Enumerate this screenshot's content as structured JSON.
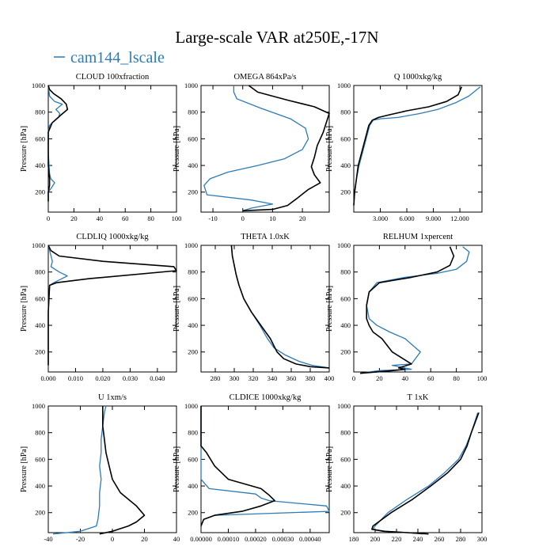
{
  "figure": {
    "title": "Large-scale VAR at250E,-17N",
    "legend_label": "cam144_lscale",
    "colors": {
      "cam": "#2b7bb9",
      "ref": "#000000"
    }
  },
  "chart_data": [
    {
      "type": "line",
      "title": "CLOUD  100xfraction",
      "ylabel": "Pressure [hPa]",
      "xlim": [
        0,
        100
      ],
      "ylim": [
        1000,
        50
      ],
      "xticks": [
        "0",
        "20",
        "40",
        "60",
        "80",
        "100"
      ],
      "xtick_values": [
        0,
        20,
        40,
        60,
        80,
        100
      ],
      "yticks": [
        "200",
        "400",
        "600",
        "800",
        "1000"
      ],
      "ytick_values": [
        200,
        400,
        600,
        800,
        1000
      ],
      "series": [
        {
          "name": "cam144_lscale",
          "color": "#2b7bb9",
          "x": [
            0,
            0,
            3,
            5,
            2,
            1,
            0,
            0,
            1,
            3,
            8,
            9,
            6,
            11,
            5,
            1,
            0
          ],
          "y": [
            130,
            200,
            240,
            270,
            300,
            340,
            500,
            650,
            700,
            720,
            760,
            790,
            820,
            860,
            880,
            920,
            1000
          ]
        },
        {
          "x": [
            0,
            0,
            1,
            1,
            0,
            0,
            3,
            10,
            15,
            14,
            10,
            4,
            1,
            0
          ],
          "y": [
            130,
            200,
            250,
            300,
            400,
            650,
            720,
            780,
            820,
            860,
            900,
            940,
            970,
            1000
          ]
        }
      ]
    },
    {
      "type": "line",
      "title": "OMEGA  864xPa/s",
      "ylabel": "Pressure [hPa]",
      "xlim": [
        -14,
        29
      ],
      "ylim": [
        1000,
        50
      ],
      "xticks": [
        "-10",
        "0",
        "10",
        "20"
      ],
      "xtick_values": [
        -10,
        0,
        10,
        20
      ],
      "yticks": [
        "200",
        "400",
        "600",
        "800",
        "1000"
      ],
      "ytick_values": [
        200,
        400,
        600,
        800,
        1000
      ],
      "series": [
        {
          "name": "cam144_lscale",
          "color": "#2b7bb9",
          "x": [
            0,
            3,
            10,
            3,
            -12,
            -13,
            -11,
            -5,
            5,
            14,
            20,
            22,
            21,
            16,
            6,
            -2,
            -3,
            -3
          ],
          "y": [
            60,
            80,
            110,
            140,
            180,
            250,
            300,
            350,
            400,
            450,
            520,
            600,
            680,
            750,
            830,
            900,
            950,
            1000
          ]
        },
        {
          "x": [
            0,
            10,
            15,
            18,
            22,
            26,
            24,
            23,
            24,
            25,
            27,
            29,
            24,
            15,
            5,
            2
          ],
          "y": [
            60,
            70,
            100,
            150,
            220,
            270,
            330,
            390,
            460,
            550,
            650,
            790,
            840,
            890,
            950,
            1000
          ]
        }
      ]
    },
    {
      "type": "line",
      "title": "Q  1000xkg/kg",
      "ylabel": "Pressure [hPa]",
      "xlim": [
        0,
        14.5
      ],
      "ylim": [
        1000,
        50
      ],
      "xticks": [
        "3.000",
        "6.000",
        "9.000",
        "12.000"
      ],
      "xtick_values": [
        3,
        6,
        9,
        12
      ],
      "yticks": [
        "200",
        "400",
        "600",
        "800",
        "1000"
      ],
      "ytick_values": [
        200,
        400,
        600,
        800,
        1000
      ],
      "series": [
        {
          "name": "cam144_lscale",
          "color": "#2b7bb9",
          "x": [
            0,
            0.1,
            0.3,
            0.6,
            1.0,
            1.4,
            1.8,
            2.2,
            3.0,
            5.0,
            7.5,
            9.5,
            11.5,
            13.0,
            14.3
          ],
          "y": [
            100,
            200,
            300,
            400,
            500,
            600,
            700,
            740,
            750,
            760,
            790,
            820,
            870,
            920,
            990
          ]
        },
        {
          "x": [
            0,
            0.1,
            0.3,
            0.5,
            0.9,
            1.3,
            1.7,
            2.1,
            2.8,
            4.0,
            6.0,
            8.5,
            10.5,
            11.8,
            12.2
          ],
          "y": [
            100,
            200,
            300,
            400,
            500,
            600,
            700,
            740,
            760,
            780,
            810,
            840,
            880,
            930,
            990
          ]
        }
      ]
    },
    {
      "type": "line",
      "title": "CLDLIQ  1000xkg/kg",
      "ylabel": "Pressure [hPa]",
      "xlim": [
        0,
        0.047
      ],
      "ylim": [
        1000,
        50
      ],
      "xticks": [
        "0.000",
        "0.010",
        "0.020",
        "0.030",
        "0.040"
      ],
      "xtick_values": [
        0,
        0.01,
        0.02,
        0.03,
        0.04
      ],
      "yticks": [
        "200",
        "400",
        "600",
        "800",
        "1000"
      ],
      "ytick_values": [
        200,
        400,
        600,
        800,
        1000
      ],
      "series": [
        {
          "name": "cam144_lscale",
          "color": "#2b7bb9",
          "x": [
            0,
            0,
            0.0005,
            0.002,
            0.007,
            0.004,
            0.001,
            0.0015,
            0
          ],
          "y": [
            100,
            500,
            700,
            720,
            770,
            800,
            840,
            880,
            1000
          ]
        },
        {
          "x": [
            0,
            0,
            0.0005,
            0.003,
            0.015,
            0.047,
            0.046,
            0.02,
            0.004,
            0.001,
            0
          ],
          "y": [
            100,
            500,
            700,
            720,
            750,
            810,
            840,
            880,
            920,
            960,
            1000
          ]
        }
      ]
    },
    {
      "type": "line",
      "title": "THETA  1.0xK",
      "ylabel": "Pressure [hPa]",
      "xlim": [
        265,
        400
      ],
      "ylim": [
        1000,
        50
      ],
      "xticks": [
        "280",
        "300",
        "320",
        "340",
        "360",
        "380",
        "400"
      ],
      "xtick_values": [
        280,
        300,
        320,
        340,
        360,
        380,
        400
      ],
      "yticks": [
        "200",
        "400",
        "600",
        "800",
        "1000"
      ],
      "ytick_values": [
        200,
        400,
        600,
        800,
        1000
      ],
      "series": [
        {
          "name": "cam144_lscale",
          "color": "#2b7bb9",
          "x": [
            400,
            382,
            368,
            353,
            342,
            335,
            327,
            318,
            310,
            305,
            302,
            300,
            298,
            297
          ],
          "y": [
            80,
            100,
            130,
            180,
            230,
            300,
            400,
            500,
            600,
            700,
            780,
            850,
            920,
            1000
          ]
        },
        {
          "x": [
            400,
            380,
            365,
            352,
            345,
            338,
            328,
            318,
            310,
            305,
            302,
            300,
            298,
            297
          ],
          "y": [
            80,
            90,
            110,
            150,
            200,
            300,
            400,
            500,
            600,
            700,
            780,
            850,
            920,
            1000
          ]
        }
      ]
    },
    {
      "type": "line",
      "title": "RELHUM  1xpercent",
      "ylabel": "Pressure [hPa]",
      "xlim": [
        0,
        100
      ],
      "ylim": [
        1000,
        50
      ],
      "xticks": [
        "0",
        "20",
        "40",
        "60",
        "80",
        "100"
      ],
      "xtick_values": [
        0,
        20,
        40,
        60,
        80,
        100
      ],
      "yticks": [
        "200",
        "400",
        "600",
        "800",
        "1000"
      ],
      "ytick_values": [
        200,
        400,
        600,
        800,
        1000
      ],
      "series": [
        {
          "name": "cam144_lscale",
          "color": "#2b7bb9",
          "x": [
            5,
            20,
            45,
            30,
            45,
            52,
            40,
            28,
            18,
            12,
            10,
            12,
            18,
            40,
            65,
            80,
            88,
            90,
            85
          ],
          "y": [
            40,
            60,
            70,
            100,
            110,
            200,
            300,
            350,
            400,
            450,
            550,
            650,
            720,
            760,
            790,
            820,
            880,
            950,
            990
          ]
        },
        {
          "x": [
            5,
            30,
            40,
            35,
            45,
            30,
            22,
            15,
            12,
            10,
            10,
            12,
            20,
            45,
            65,
            75,
            78,
            75
          ],
          "y": [
            40,
            60,
            70,
            80,
            110,
            200,
            300,
            350,
            400,
            450,
            550,
            650,
            720,
            760,
            800,
            850,
            920,
            990
          ]
        }
      ]
    },
    {
      "type": "line",
      "title": "U  1xm/s",
      "ylabel": "Pressure [hPa]",
      "xlim": [
        -40,
        40
      ],
      "ylim": [
        1000,
        50
      ],
      "xticks": [
        "-40",
        "-20",
        "0",
        "20",
        "40"
      ],
      "xtick_values": [
        -40,
        -20,
        0,
        20,
        40
      ],
      "yticks": [
        "200",
        "400",
        "600",
        "800",
        "1000"
      ],
      "ytick_values": [
        200,
        400,
        600,
        800,
        1000
      ],
      "series": [
        {
          "name": "cam144_lscale",
          "color": "#2b7bb9",
          "x": [
            -37,
            -20,
            -10,
            -9,
            -8,
            -8,
            -7,
            -8,
            -7,
            -7,
            -6,
            -5,
            -4
          ],
          "y": [
            40,
            60,
            100,
            150,
            250,
            350,
            450,
            550,
            650,
            750,
            850,
            950,
            1000
          ]
        },
        {
          "x": [
            -8,
            0,
            10,
            15,
            20,
            15,
            5,
            0,
            -2,
            -4,
            -5,
            -6,
            -6
          ],
          "y": [
            40,
            60,
            100,
            130,
            180,
            250,
            350,
            450,
            550,
            650,
            750,
            850,
            1000
          ]
        }
      ]
    },
    {
      "type": "line",
      "title": "CLDICE  1000xkg/kg",
      "ylabel": "Pressure [hPa]",
      "xlim": [
        0,
        0.00047
      ],
      "ylim": [
        1000,
        50
      ],
      "xticks": [
        "0.00000",
        "0.00010",
        "0.00020",
        "0.00030",
        "0.00040"
      ],
      "xtick_values": [
        0,
        0.0001,
        0.0002,
        0.0003,
        0.0004
      ],
      "yticks": [
        "200",
        "400",
        "600",
        "800",
        "1000"
      ],
      "ytick_values": [
        200,
        400,
        600,
        800,
        1000
      ],
      "series": [
        {
          "name": "cam144_lscale",
          "color": "#2b7bb9",
          "x": [
            0,
            1e-05,
            5e-05,
            0.00047,
            0.00046,
            0.00025,
            0.00022,
            0.0002,
            3e-05,
            0,
            0
          ],
          "y": [
            100,
            150,
            180,
            210,
            250,
            290,
            310,
            340,
            380,
            450,
            1000
          ]
        },
        {
          "x": [
            0,
            1e-05,
            5e-05,
            0.00015,
            0.00022,
            0.00027,
            0.00025,
            0.00022,
            0.0001,
            5e-05,
            2e-05,
            0,
            0
          ],
          "y": [
            100,
            150,
            180,
            210,
            250,
            290,
            330,
            380,
            450,
            550,
            650,
            700,
            1000
          ]
        }
      ]
    },
    {
      "type": "line",
      "title": "T  1xK",
      "ylabel": "Pressure [hPa]",
      "xlim": [
        180,
        300
      ],
      "ylim": [
        1000,
        50
      ],
      "xticks": [
        "180",
        "200",
        "220",
        "240",
        "260",
        "280",
        "300"
      ],
      "xtick_values": [
        180,
        200,
        220,
        240,
        260,
        280,
        300
      ],
      "yticks": [
        "200",
        "400",
        "600",
        "800",
        "1000"
      ],
      "ytick_values": [
        200,
        400,
        600,
        800,
        1000
      ],
      "series": [
        {
          "name": "cam144_lscale",
          "color": "#2b7bb9",
          "x": [
            245,
            230,
            210,
            198,
            200,
            212,
            230,
            250,
            265,
            278,
            285,
            290,
            296
          ],
          "y": [
            40,
            50,
            60,
            75,
            100,
            200,
            300,
            400,
            500,
            600,
            700,
            800,
            950
          ]
        },
        {
          "x": [
            250,
            230,
            208,
            197,
            198,
            215,
            235,
            252,
            268,
            280,
            286,
            290,
            297
          ],
          "y": [
            40,
            50,
            60,
            75,
            100,
            200,
            300,
            400,
            500,
            600,
            700,
            800,
            950
          ]
        }
      ]
    }
  ]
}
